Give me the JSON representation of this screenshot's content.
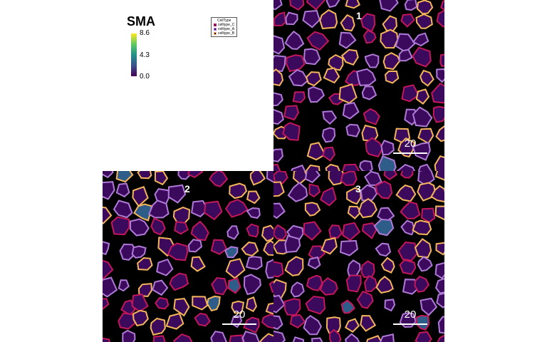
{
  "colorbar": {
    "title": "SMA",
    "max_label": "8.6",
    "mid_label": "4.3",
    "min_label": "0.0",
    "colors": [
      "#440154",
      "#3b528b",
      "#21918c",
      "#5ec962",
      "#fde725"
    ]
  },
  "legend": {
    "title": "CellType",
    "items": [
      {
        "label": "celltype_C",
        "color": "#c2185b"
      },
      {
        "label": "celltype_A",
        "color": "#b07ad8"
      },
      {
        "label": "celltype_B",
        "color": "#f5b55a"
      }
    ]
  },
  "panels": [
    {
      "label": "1",
      "scale_label": "20",
      "seed": 11
    },
    {
      "label": "2",
      "scale_label": "20",
      "seed": 37
    },
    {
      "label": "3",
      "scale_label": "20",
      "seed": 73
    }
  ],
  "cell_fill_color": "#3b0a5c",
  "highlight_fill_colors": [
    "#2f5d8a",
    "#21918c",
    "#fde725"
  ]
}
